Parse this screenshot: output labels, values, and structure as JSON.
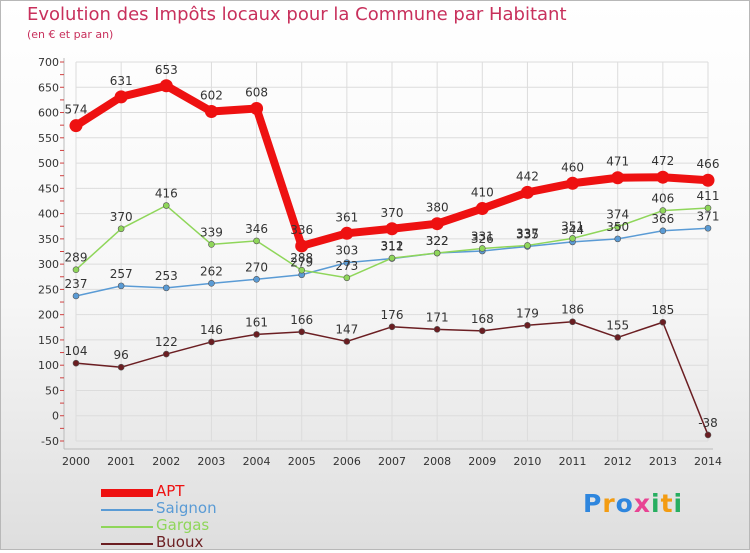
{
  "chart_data": {
    "type": "line",
    "title": "Evolution des Impôts locaux pour la Commune par Habitant",
    "subtitle": "(en € et par an)",
    "x": [
      "2000",
      "2001",
      "2002",
      "2003",
      "2004",
      "2005",
      "2006",
      "2007",
      "2008",
      "2009",
      "2010",
      "2011",
      "2012",
      "2013",
      "2014"
    ],
    "ylim": [
      -50,
      700
    ],
    "yticks": [
      -50,
      0,
      50,
      100,
      150,
      200,
      250,
      300,
      350,
      400,
      450,
      500,
      550,
      600,
      650,
      700
    ],
    "grid": true,
    "legend_position": "bottom-left",
    "series": [
      {
        "name": "APT",
        "color": "#ee1111",
        "values": [
          574,
          631,
          653,
          602,
          608,
          336,
          361,
          370,
          380,
          410,
          442,
          460,
          471,
          472,
          466
        ]
      },
      {
        "name": "Saignon",
        "color": "#5a9bd5",
        "values": [
          237,
          257,
          253,
          262,
          270,
          279,
          303,
          311,
          322,
          326,
          335,
          344,
          350,
          366,
          371
        ]
      },
      {
        "name": "Gargas",
        "color": "#8fd65a",
        "values": [
          289,
          370,
          416,
          339,
          346,
          288,
          273,
          312,
          322,
          331,
          337,
          351,
          374,
          406,
          411
        ]
      },
      {
        "name": "Buoux",
        "color": "#6b1e22",
        "values": [
          104,
          96,
          122,
          146,
          161,
          166,
          147,
          176,
          171,
          168,
          179,
          186,
          155,
          185,
          -38
        ]
      }
    ]
  },
  "brand": {
    "letters": [
      "P",
      "r",
      "o",
      "x",
      "i",
      "t",
      "i"
    ],
    "colors": [
      "#2e86de",
      "#f39c12",
      "#2e86de",
      "#e84393",
      "#27ae60",
      "#f39c12",
      "#27ae60"
    ]
  }
}
